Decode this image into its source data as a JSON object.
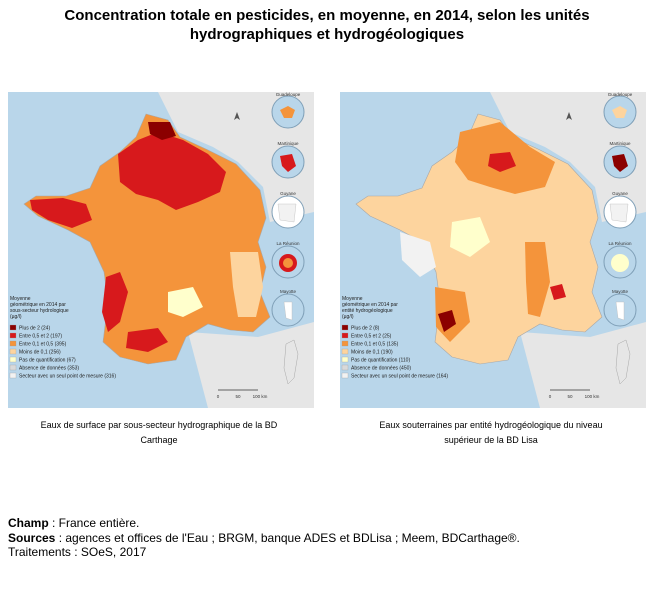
{
  "title": {
    "line1": "Concentration totale en pesticides, en moyenne, en 2014, selon les unités",
    "line2": "hydrographiques et hydrogéologiques"
  },
  "map_left": {
    "legend_title_lines": [
      "Moyenne",
      "géométrique en 2014 par",
      "sous-secteur hydrologique",
      "(µg/l)"
    ],
    "legend_items": [
      {
        "label": "Plus de 2 (24)",
        "color": "#8b0000"
      },
      {
        "label": "Entre 0,5 et 2 (197)",
        "color": "#d7191c"
      },
      {
        "label": "Entre 0,1 et 0,5 (395)",
        "color": "#f4943b"
      },
      {
        "label": "Moins de 0,1 (256)",
        "color": "#fdd49e"
      },
      {
        "label": "Pas de quantification (67)",
        "color": "#ffffcc"
      },
      {
        "label": "Absence de données (353)",
        "color": "#d9d9d9"
      },
      {
        "label": "Secteur avec un seul point de mesure (316)",
        "color": "#f2f2f2"
      }
    ],
    "caption_line1": "Eaux de surface par sous-secteur hydrographique de la BD",
    "caption_line2": "Carthage"
  },
  "map_right": {
    "legend_title_lines": [
      "Moyenne",
      "géométrique en 2014 par",
      "entité hydrogéologique",
      "(µg/l)"
    ],
    "legend_items": [
      {
        "label": "Plus de 2 (8)",
        "color": "#8b0000"
      },
      {
        "label": "Entre 0,5 et 2 (25)",
        "color": "#d7191c"
      },
      {
        "label": "Entre 0,1 et 0,5 (135)",
        "color": "#f4943b"
      },
      {
        "label": "Moins de 0,1 (190)",
        "color": "#fdd49e"
      },
      {
        "label": "Pas de quantification (110)",
        "color": "#ffffcc"
      },
      {
        "label": "Absence de données (450)",
        "color": "#d9d9d9"
      },
      {
        "label": "Secteur avec un seul point de mesure (164)",
        "color": "#f2f2f2"
      }
    ],
    "caption_line1": "Eaux souterraines par entité hydrogéologique du niveau",
    "caption_line2": "supérieur de la BD Lisa"
  },
  "insets": [
    "Guadeloupe",
    "Martinique",
    "Guyane",
    "La Réunion",
    "Mayotte"
  ],
  "scale_labels": [
    "0",
    "50",
    "100 km"
  ],
  "footer": {
    "champ_label": "Champ",
    "champ_text": " : France entière.",
    "sources_label": "Sources",
    "sources_text": " : agences et offices de l'Eau ; BRGM, banque ADES et BDLisa ; Meem, BDCarthage®.",
    "traitements": "Traitements : SOeS, 2017"
  },
  "colors": {
    "sea": "#b9d6ea",
    "land": "#e8e8e8",
    "dark_red": "#8b0000",
    "red": "#d7191c",
    "orange": "#f4943b",
    "light_orange": "#fdd49e",
    "pale_yellow": "#ffffcc"
  }
}
